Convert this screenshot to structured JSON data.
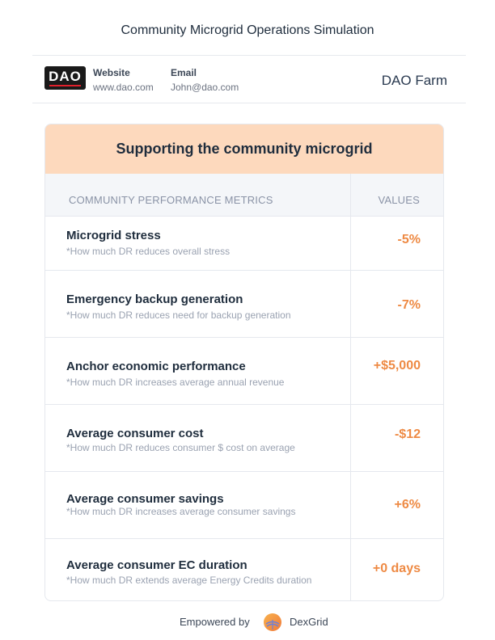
{
  "page": {
    "title": "Community Microgrid Operations Simulation"
  },
  "header": {
    "logo_text": "DAO",
    "website_label": "Website",
    "website_value": "www.dao.com",
    "email_label": "Email",
    "email_value": "John@dao.com",
    "company": "DAO Farm"
  },
  "card": {
    "title": "Supporting the community microgrid",
    "col_metric": "COMMUNITY PERFORMANCE METRICS",
    "col_values": "VALUES",
    "rows": [
      {
        "name": "Microgrid stress",
        "desc": "*How much DR reduces overall stress",
        "value": "-5%"
      },
      {
        "name": "Emergency backup generation",
        "desc": "*How much DR reduces need for backup generation",
        "value": "-7%"
      },
      {
        "name": "Anchor economic performance",
        "desc": "*How much DR increases average annual revenue",
        "value": "+$5,000"
      },
      {
        "name": "Average consumer cost",
        "desc": "*How much DR reduces consumer $ cost on average",
        "value": "-$12"
      },
      {
        "name": "Average consumer savings",
        "desc": "*How much DR increases average consumer savings",
        "value": "+6%"
      },
      {
        "name": "Average consumer EC duration",
        "desc": "*How much DR extends average Energy Credits duration",
        "value": "+0 days"
      }
    ]
  },
  "footer": {
    "empowered_by": "Empowered by",
    "brand": "DexGrid",
    "brand_icon": "dexgrid-logo-icon"
  },
  "colors": {
    "accent": "#ee8a44",
    "header_bg": "#fdd9bd",
    "text": "#1f2d3d"
  }
}
